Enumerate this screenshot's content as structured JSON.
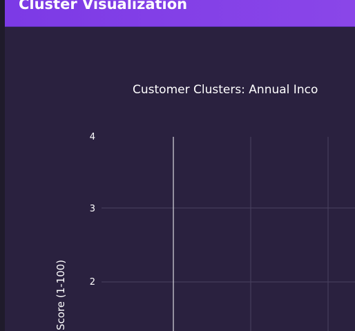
{
  "panel": {
    "title": "Cluster Visualization"
  },
  "colors": {
    "header": "#7c3ae6",
    "background": "#2a213f",
    "grid": "#4a4260",
    "text": "#ffffff"
  },
  "chart_data": {
    "type": "scatter",
    "title": "Customer Clusters: Annual Inco",
    "xlabel": "",
    "ylabel": "Score (1-100)",
    "ylim": [
      1,
      4
    ],
    "y_ticks": [
      "4",
      "3",
      "2"
    ],
    "series": [],
    "grid": true
  }
}
